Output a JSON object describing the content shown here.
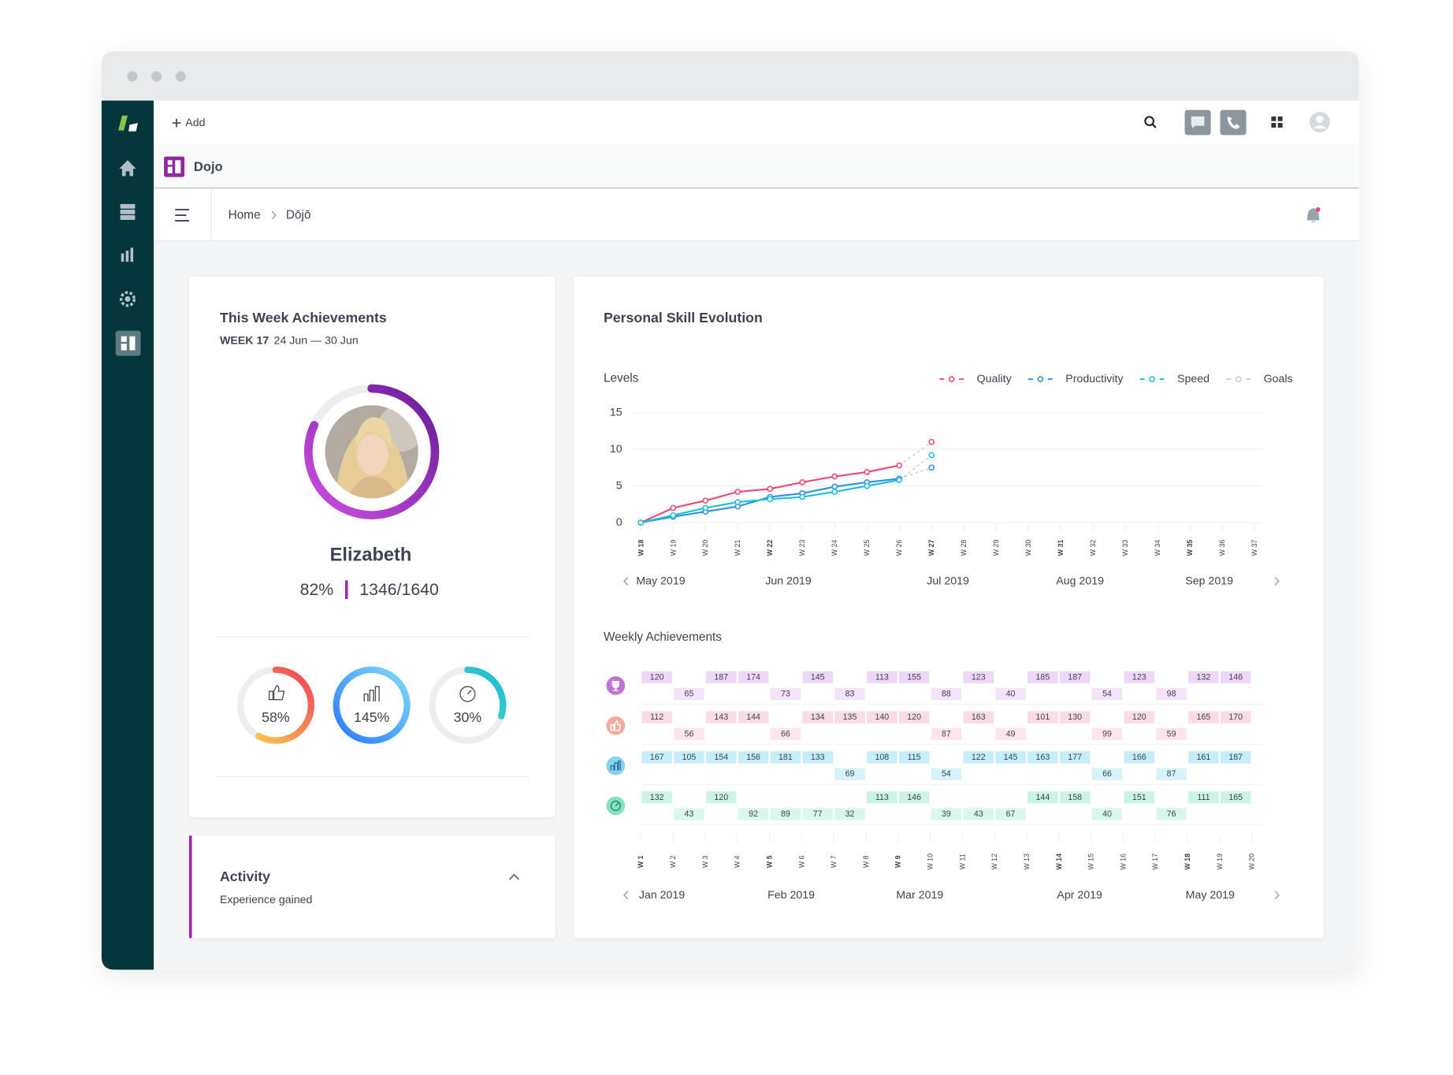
{
  "topbar": {
    "add": "Add"
  },
  "app": {
    "title": "Dojo"
  },
  "breadcrumb": [
    "Home",
    "Dōjō"
  ],
  "achievements": {
    "title": "This Week Achievements",
    "week": "WEEK 17",
    "range": "24 Jun — 30 Jun",
    "name": "Elizabeth",
    "progress": {
      "value": 82,
      "label": "82%"
    },
    "score": "1346",
    "total": "/1640",
    "stats": [
      {
        "value": 58,
        "label": "58%"
      },
      {
        "value": 145,
        "label": "145%"
      },
      {
        "value": 30,
        "label": "30%"
      }
    ]
  },
  "activity": {
    "title": "Activity",
    "subtitle": "Experience gained"
  },
  "chart_data": [
    {
      "type": "line",
      "title": "Personal Skill Evolution",
      "subtitle": "Levels",
      "categories": [
        "W 18",
        "W 19",
        "W 20",
        "W 21",
        "W 22",
        "W 23",
        "W 24",
        "W 25",
        "W 26",
        "W 27",
        "W 28",
        "W 29",
        "W 30",
        "W 31",
        "W 32",
        "W 33",
        "W 34",
        "W 35",
        "W 36",
        "W 37"
      ],
      "months": [
        "May 2019",
        null,
        null,
        null,
        "Jun 2019",
        null,
        null,
        null,
        null,
        "Jul 2019",
        null,
        null,
        null,
        "Aug 2019",
        null,
        null,
        null,
        "Sep 2019",
        null,
        null
      ],
      "series": [
        {
          "name": "Quality",
          "color": "#e9486f",
          "values": [
            0,
            2,
            3,
            4.2,
            4.6,
            5.5,
            6.3,
            6.9,
            7.8,
            null,
            null,
            null,
            null,
            null,
            null,
            null,
            null,
            null,
            null,
            null
          ],
          "goal": 11
        },
        {
          "name": "Productivity",
          "color": "#2f8fe0",
          "values": [
            0,
            0.8,
            1.5,
            2.2,
            3.5,
            4,
            4.9,
            5.5,
            6,
            null,
            null,
            null,
            null,
            null,
            null,
            null,
            null,
            null,
            null,
            null
          ],
          "goal": 7.5
        },
        {
          "name": "Speed",
          "color": "#1cbfd6",
          "values": [
            0,
            1,
            2,
            2.8,
            3.2,
            3.5,
            4.2,
            5,
            5.8,
            null,
            null,
            null,
            null,
            null,
            null,
            null,
            null,
            null,
            null,
            null
          ],
          "goal": 9.2
        }
      ],
      "goal_line": {
        "name": "Goals",
        "color": "#c9ccd0"
      },
      "ylim": [
        0,
        15
      ],
      "yticks": [
        0,
        5,
        10,
        15
      ],
      "grid": true
    },
    {
      "type": "timeline",
      "title": "Weekly Achievements",
      "categories": [
        "W 1",
        "W 2",
        "W 3",
        "W 4",
        "W 5",
        "W 6",
        "W 7",
        "W 8",
        "W 9",
        "W 10",
        "W 11",
        "W 12",
        "W 13",
        "W 14",
        "W 15",
        "W 16",
        "W 17",
        "W 18",
        "W 19",
        "W 20"
      ],
      "months": [
        "Jan 2019",
        null,
        null,
        null,
        "Feb 2019",
        null,
        null,
        null,
        "Mar 2019",
        null,
        null,
        null,
        null,
        "Apr 2019",
        null,
        null,
        null,
        "May 2019",
        null,
        null
      ],
      "rows": [
        {
          "color": "#efd7f7",
          "icon": "#b45ccc",
          "above": [
            120,
            null,
            187,
            174,
            null,
            145,
            null,
            113,
            155,
            null,
            123,
            null,
            185,
            187,
            null,
            123,
            null,
            132,
            146,
            null
          ],
          "below": [
            null,
            65,
            null,
            null,
            73,
            null,
            83,
            null,
            null,
            88,
            null,
            40,
            null,
            null,
            54,
            null,
            98,
            null,
            null,
            null
          ]
        },
        {
          "color": "#fbdbe4",
          "icon": "#f59a8c",
          "above": [
            112,
            null,
            143,
            144,
            null,
            134,
            135,
            140,
            120,
            null,
            163,
            null,
            101,
            130,
            null,
            120,
            null,
            165,
            170,
            null
          ],
          "below": [
            null,
            56,
            null,
            null,
            66,
            null,
            null,
            null,
            null,
            87,
            null,
            49,
            null,
            null,
            99,
            null,
            59,
            null,
            null,
            null
          ]
        },
        {
          "color": "#c5eef8",
          "icon": "#6ccbec",
          "above": [
            167,
            105,
            154,
            156,
            181,
            133,
            null,
            108,
            115,
            null,
            122,
            145,
            163,
            177,
            null,
            166,
            null,
            161,
            187,
            null
          ],
          "below": [
            null,
            null,
            null,
            null,
            null,
            null,
            69,
            null,
            null,
            54,
            null,
            null,
            null,
            null,
            66,
            null,
            87,
            null,
            null,
            null
          ]
        },
        {
          "color": "#cbf3e6",
          "icon": "#6fdcb8",
          "above": [
            132,
            null,
            120,
            null,
            null,
            null,
            null,
            113,
            146,
            null,
            null,
            null,
            144,
            158,
            null,
            151,
            null,
            111,
            165,
            null
          ],
          "below": [
            null,
            43,
            null,
            92,
            89,
            77,
            32,
            null,
            null,
            39,
            43,
            67,
            null,
            null,
            40,
            null,
            76,
            null,
            null,
            null
          ]
        }
      ]
    }
  ]
}
